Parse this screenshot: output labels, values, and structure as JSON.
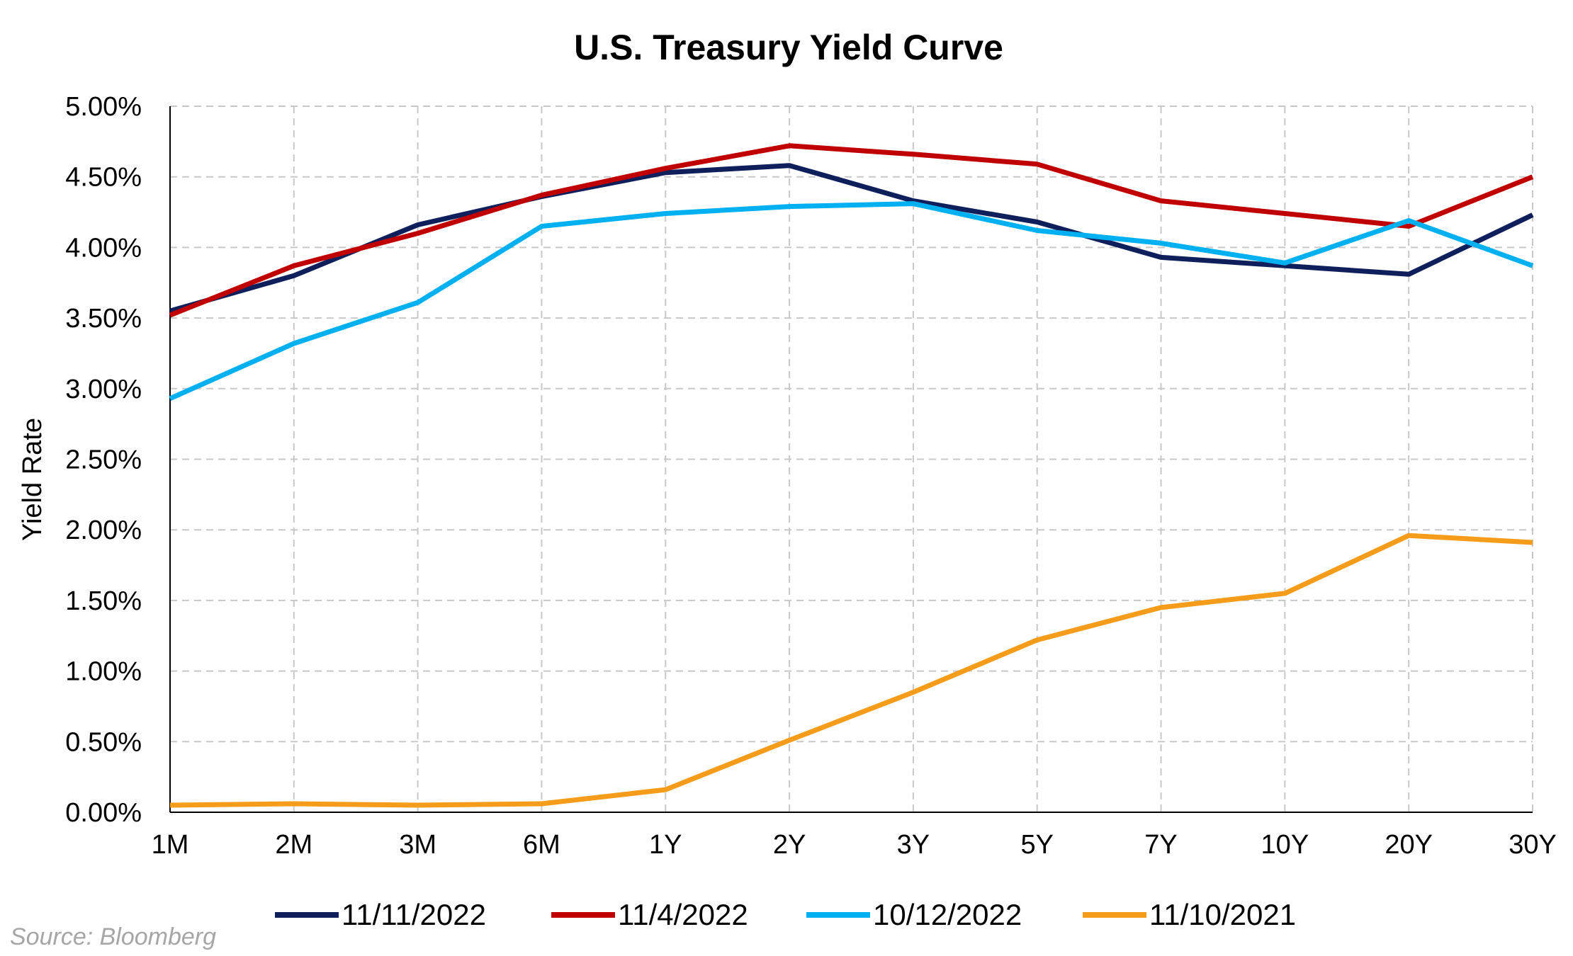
{
  "chart_data": {
    "type": "line",
    "title": "U.S. Treasury Yield Curve",
    "ylabel": "Yield Rate",
    "xlabel": "",
    "ylim": [
      0,
      5
    ],
    "y_ticks": [
      "0.00%",
      "0.50%",
      "1.00%",
      "1.50%",
      "2.00%",
      "2.50%",
      "3.00%",
      "3.50%",
      "4.00%",
      "4.50%",
      "5.00%"
    ],
    "y_tick_values": [
      0,
      0.5,
      1,
      1.5,
      2,
      2.5,
      3,
      3.5,
      4,
      4.5,
      5
    ],
    "categories": [
      "1M",
      "2M",
      "3M",
      "6M",
      "1Y",
      "2Y",
      "3Y",
      "5Y",
      "7Y",
      "10Y",
      "20Y",
      "30Y"
    ],
    "grid": true,
    "legend_position": "bottom",
    "series": [
      {
        "name": "11/11/2022",
        "color": "#0f1f5c",
        "values": [
          3.55,
          3.8,
          4.16,
          4.36,
          4.53,
          4.58,
          4.33,
          4.18,
          3.93,
          3.87,
          3.81,
          4.23
        ]
      },
      {
        "name": "11/4/2022",
        "color": "#c00000",
        "values": [
          3.52,
          3.87,
          4.1,
          4.37,
          4.56,
          4.72,
          4.66,
          4.59,
          4.33,
          4.24,
          4.15,
          4.5
        ]
      },
      {
        "name": "10/12/2022",
        "color": "#00b0f0",
        "values": [
          2.93,
          3.32,
          3.61,
          4.15,
          4.24,
          4.29,
          4.31,
          4.12,
          4.03,
          3.89,
          4.19,
          3.87
        ]
      },
      {
        "name": "11/10/2021",
        "color": "#f59c1a",
        "values": [
          0.05,
          0.06,
          0.05,
          0.06,
          0.16,
          0.51,
          0.85,
          1.22,
          1.45,
          1.55,
          1.96,
          1.91
        ]
      }
    ],
    "source": "Source: Bloomberg"
  }
}
